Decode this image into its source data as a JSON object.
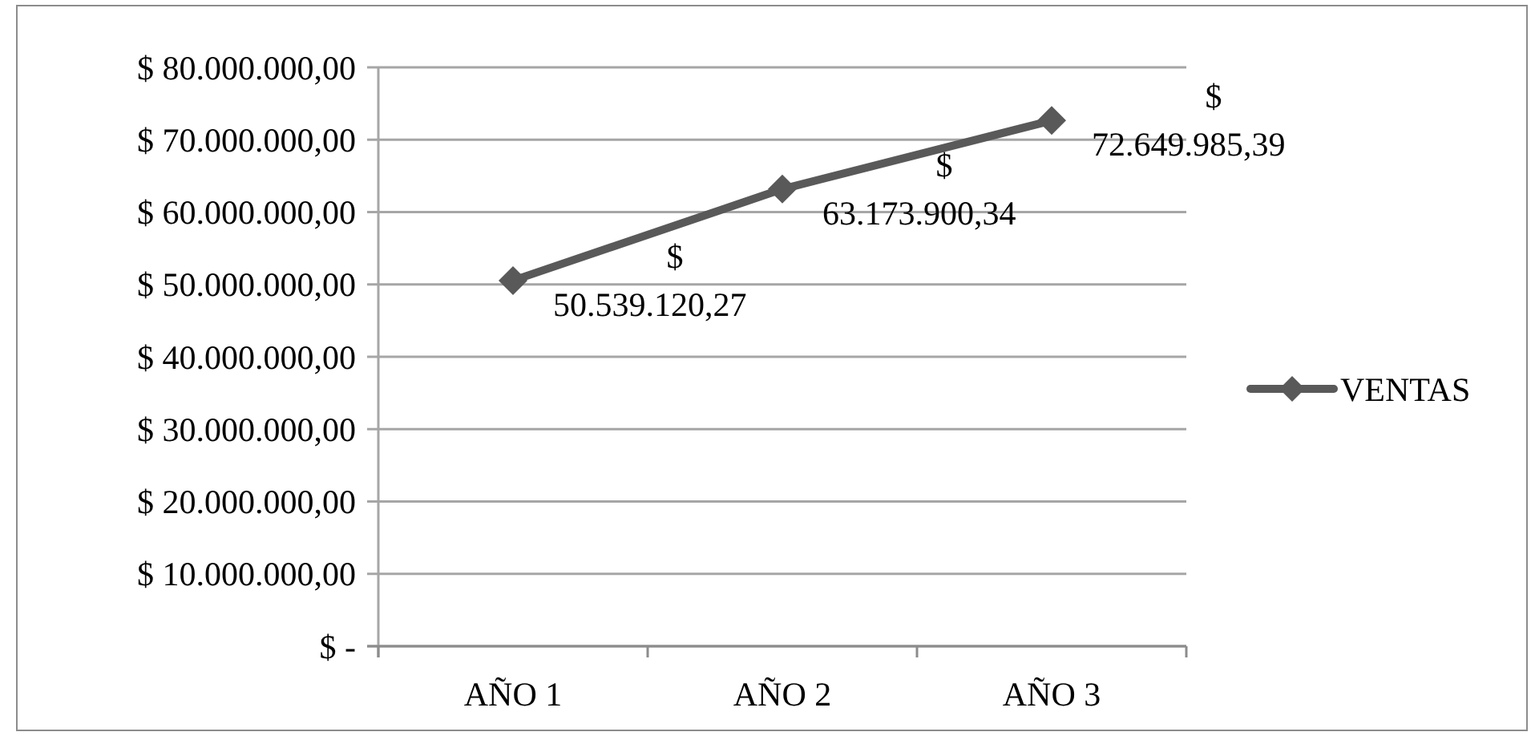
{
  "chart_data": {
    "type": "line",
    "categories": [
      "AÑO 1",
      "AÑO 2",
      "AÑO 3"
    ],
    "series": [
      {
        "name": "VENTAS",
        "color": "#595959",
        "values": [
          50539120.27,
          63173900.34,
          72649985.39
        ],
        "value_labels": [
          "$ 50.539.120,27",
          "$ 63.173.900,34",
          "$ 72.649.985,39"
        ]
      }
    ],
    "ylim": [
      0,
      80000000
    ],
    "yticks": [
      {
        "value": 0,
        "label": "$ -"
      },
      {
        "value": 10000000,
        "label": "$ 10.000.000,00"
      },
      {
        "value": 20000000,
        "label": "$ 20.000.000,00"
      },
      {
        "value": 30000000,
        "label": "$ 30.000.000,00"
      },
      {
        "value": 40000000,
        "label": "$ 40.000.000,00"
      },
      {
        "value": 50000000,
        "label": "$ 50.000.000,00"
      },
      {
        "value": 60000000,
        "label": "$ 60.000.000,00"
      },
      {
        "value": 70000000,
        "label": "$ 70.000.000,00"
      },
      {
        "value": 80000000,
        "label": "$ 80.000.000,00"
      }
    ],
    "grid": "y",
    "legend": "right",
    "marker": "diamond",
    "line_style": "solid"
  }
}
